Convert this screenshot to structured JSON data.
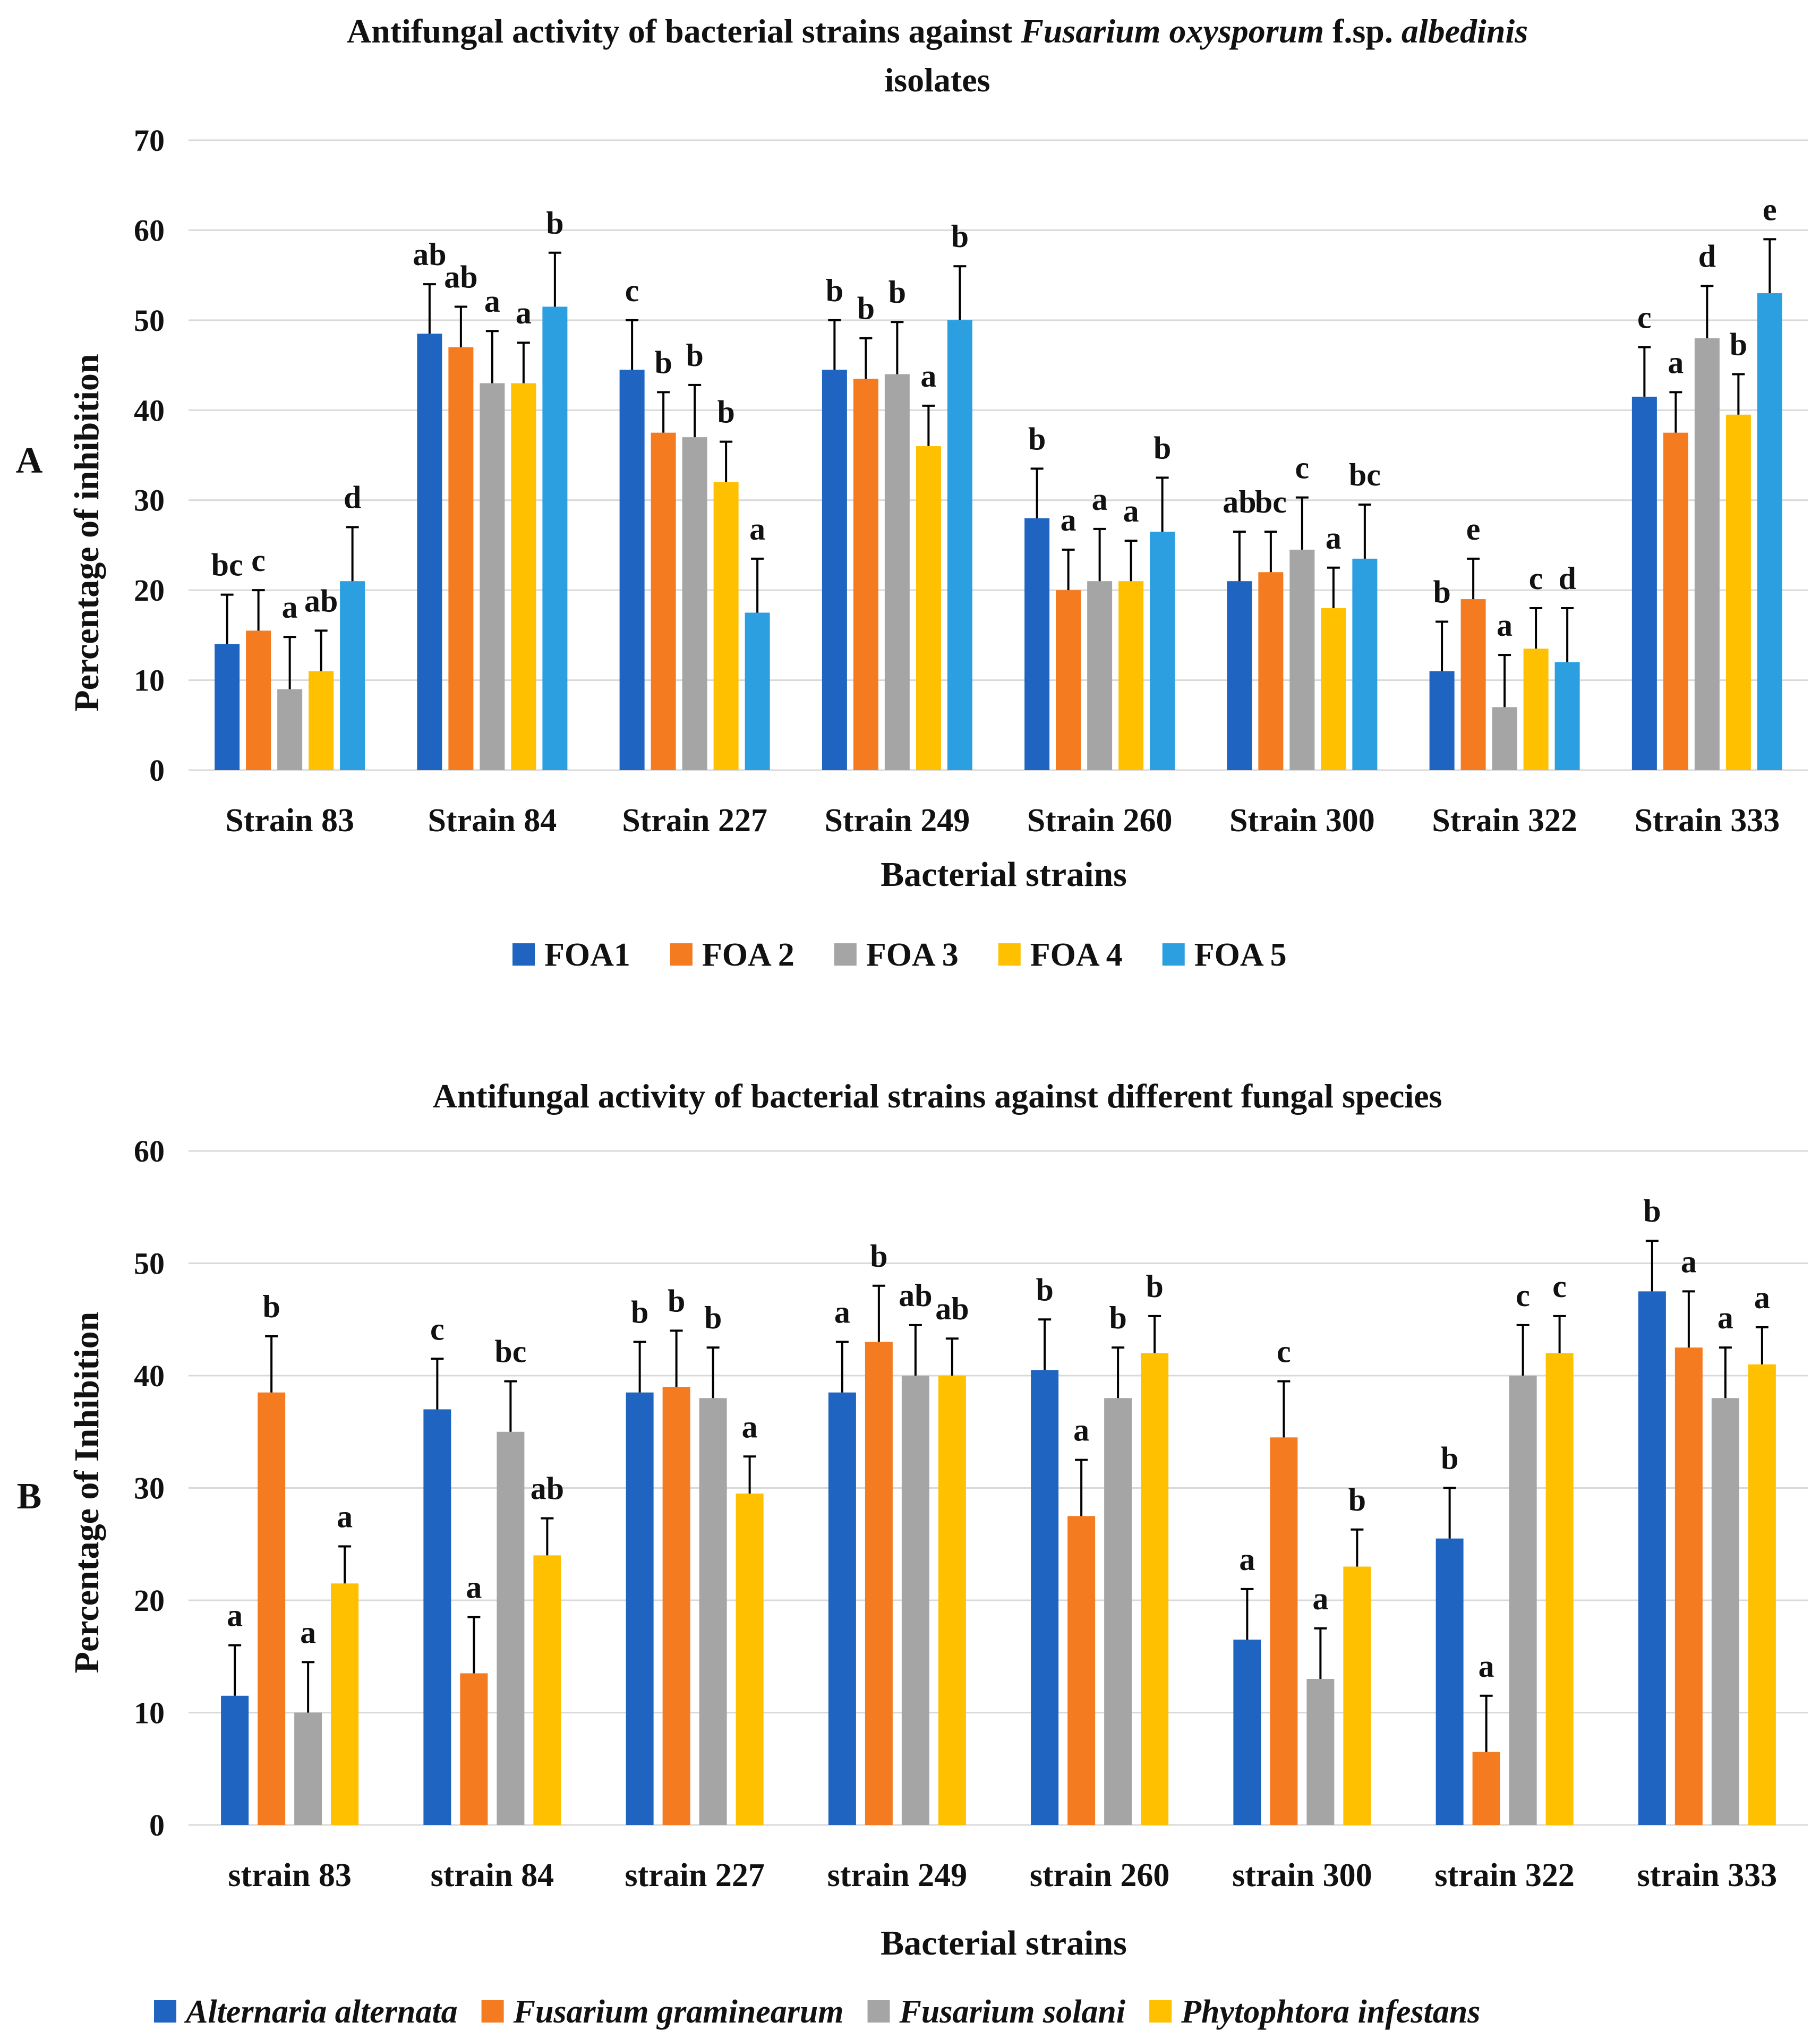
{
  "chart_data": [
    {
      "panel": "A",
      "type": "bar",
      "title": "Antifungal activity of bacterial strains against",
      "title_italic": "Fusarium oxysporum",
      "title_mid": "f.sp.",
      "title_italic2": "albedinis",
      "title_line2": "isolates",
      "xlabel": "Bacterial strains",
      "ylabel": "Percentage of inhibition",
      "ylim": [
        0,
        70
      ],
      "yticks": [
        0,
        10,
        20,
        30,
        40,
        50,
        60,
        70
      ],
      "grid": true,
      "legend_position": "bottom",
      "legend_italic": false,
      "categories": [
        "Strain 83",
        "Strain 84",
        "Strain 227",
        "Strain 249",
        "Strain 260",
        "Strain 300",
        "Strain 322",
        "Strain 333"
      ],
      "series": [
        {
          "name": "FOA1",
          "color": "#1f64c0",
          "values": [
            14,
            48.5,
            44.5,
            44.5,
            28,
            21,
            11,
            41.5
          ],
          "errors": [
            5.5,
            5.5,
            5.5,
            5.5,
            5.5,
            5.5,
            5.5,
            5.5
          ],
          "labels": [
            "bc",
            "ab",
            "c",
            "b",
            "b",
            "ab",
            "b",
            "c"
          ]
        },
        {
          "name": "FOA 2",
          "color": "#f47b20",
          "values": [
            15.5,
            47,
            37.5,
            43.5,
            20,
            22,
            19,
            37.5
          ],
          "errors": [
            4.5,
            4.5,
            4.5,
            4.5,
            4.5,
            4.5,
            4.5,
            4.5
          ],
          "labels": [
            "c",
            "ab",
            "b",
            "b",
            "a",
            "bc",
            "e",
            "a"
          ]
        },
        {
          "name": "FOA 3",
          "color": "#a5a5a5",
          "values": [
            9,
            43,
            37,
            44,
            21,
            24.5,
            7,
            48
          ],
          "errors": [
            5.8,
            5.8,
            5.8,
            5.8,
            5.8,
            5.8,
            5.8,
            5.8
          ],
          "labels": [
            "a",
            "a",
            "b",
            "b",
            "a",
            "c",
            "a",
            "d"
          ]
        },
        {
          "name": "FOA 4",
          "color": "#ffc000",
          "values": [
            11,
            43,
            32,
            36,
            21,
            18,
            13.5,
            39.5
          ],
          "errors": [
            4.5,
            4.5,
            4.5,
            4.5,
            4.5,
            4.5,
            4.5,
            4.5
          ],
          "labels": [
            "ab",
            "a",
            "b",
            "a",
            "a",
            "a",
            "c",
            "b"
          ]
        },
        {
          "name": "FOA 5",
          "color": "#2b9fe0",
          "values": [
            21,
            51.5,
            17.5,
            50,
            26.5,
            23.5,
            12,
            53
          ],
          "errors": [
            6,
            6,
            6,
            6,
            6,
            6,
            6,
            6
          ],
          "labels": [
            "d",
            "b",
            "a",
            "b",
            "b",
            "bc",
            "d",
            "e"
          ]
        }
      ]
    },
    {
      "panel": "B",
      "type": "bar",
      "title": "Antifungal activity of bacterial strains against different fungal species",
      "xlabel": "Bacterial strains",
      "ylabel": "Percentage of Inhibition",
      "ylim": [
        0,
        60
      ],
      "yticks": [
        0,
        10,
        20,
        30,
        40,
        50,
        60
      ],
      "grid": true,
      "legend_position": "bottom",
      "legend_italic": true,
      "categories": [
        "strain 83",
        "strain 84",
        "strain 227",
        "strain 249",
        "strain 260",
        "strain 300",
        "strain 322",
        "strain 333"
      ],
      "series": [
        {
          "name": "Alternaria alternata",
          "color": "#1f64c0",
          "values": [
            11.5,
            37,
            38.5,
            38.5,
            40.5,
            16.5,
            25.5,
            47.5
          ],
          "errors": [
            4.5,
            4.5,
            4.5,
            4.5,
            4.5,
            4.5,
            4.5,
            4.5
          ],
          "labels": [
            "a",
            "c",
            "b",
            "a",
            "b",
            "a",
            "b",
            "b"
          ]
        },
        {
          "name": "Fusarium graminearum",
          "color": "#f47b20",
          "values": [
            38.5,
            13.5,
            39,
            43,
            27.5,
            34.5,
            6.5,
            42.5
          ],
          "errors": [
            5,
            5,
            5,
            5,
            5,
            5,
            5,
            5
          ],
          "labels": [
            "b",
            "a",
            "b",
            "b",
            "a",
            "c",
            "a",
            "a"
          ]
        },
        {
          "name": "Fusarium solani",
          "color": "#a5a5a5",
          "values": [
            10,
            35,
            38,
            40,
            38,
            13,
            40,
            38
          ],
          "errors": [
            4.5,
            4.5,
            4.5,
            4.5,
            4.5,
            4.5,
            4.5,
            4.5
          ],
          "labels": [
            "a",
            "bc",
            "b",
            "ab",
            "b",
            "a",
            "c",
            "a"
          ]
        },
        {
          "name": "Phytophtora infestans",
          "color": "#ffc000",
          "values": [
            21.5,
            24,
            29.5,
            40,
            42,
            23,
            42,
            41
          ],
          "errors": [
            3.3,
            3.3,
            3.3,
            3.3,
            3.3,
            3.3,
            3.3,
            3.3
          ],
          "labels": [
            "a",
            "ab",
            "a",
            "ab",
            "b",
            "b",
            "c",
            "a"
          ]
        }
      ]
    }
  ]
}
